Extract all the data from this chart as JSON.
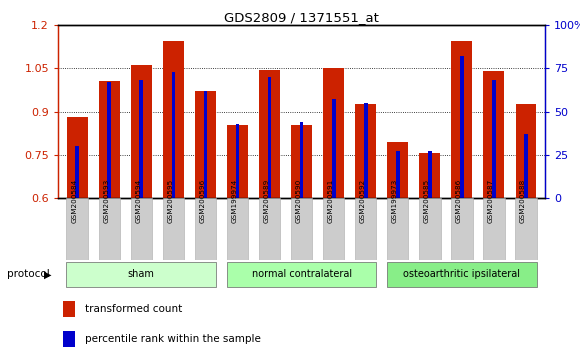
{
  "title": "GDS2809 / 1371551_at",
  "samples": [
    "GSM200584",
    "GSM200593",
    "GSM200594",
    "GSM200595",
    "GSM200596",
    "GSM199974",
    "GSM200589",
    "GSM200590",
    "GSM200591",
    "GSM200592",
    "GSM199973",
    "GSM200585",
    "GSM200586",
    "GSM200587",
    "GSM200588"
  ],
  "transformed_count": [
    0.88,
    1.005,
    1.06,
    1.145,
    0.97,
    0.855,
    1.045,
    0.855,
    1.05,
    0.925,
    0.795,
    0.755,
    1.145,
    1.04,
    0.925
  ],
  "percentile_rank": [
    30,
    67,
    68,
    73,
    62,
    43,
    70,
    44,
    57,
    55,
    27,
    27,
    82,
    68,
    37
  ],
  "ymin": 0.6,
  "ymax": 1.2,
  "y2min": 0,
  "y2max": 100,
  "yticks": [
    0.6,
    0.75,
    0.9,
    1.05,
    1.2
  ],
  "ytick_labels": [
    "0.6",
    "0.75",
    "0.9",
    "1.05",
    "1.2"
  ],
  "y2ticks": [
    0,
    25,
    50,
    75,
    100
  ],
  "y2tick_labels": [
    "0",
    "25",
    "50",
    "75",
    "100%"
  ],
  "groups": [
    {
      "label": "sham",
      "start": 0,
      "end": 5
    },
    {
      "label": "normal contralateral",
      "start": 5,
      "end": 10
    },
    {
      "label": "osteoarthritic ipsilateral",
      "start": 10,
      "end": 15
    }
  ],
  "group_colors": [
    "#ccffcc",
    "#aaffaa",
    "#88ee88"
  ],
  "bar_color_red": "#cc2200",
  "bar_color_blue": "#0000cc",
  "bar_width": 0.65,
  "legend_red": "transformed count",
  "legend_blue": "percentile rank within the sample",
  "sample_label_bg": "#cccccc"
}
